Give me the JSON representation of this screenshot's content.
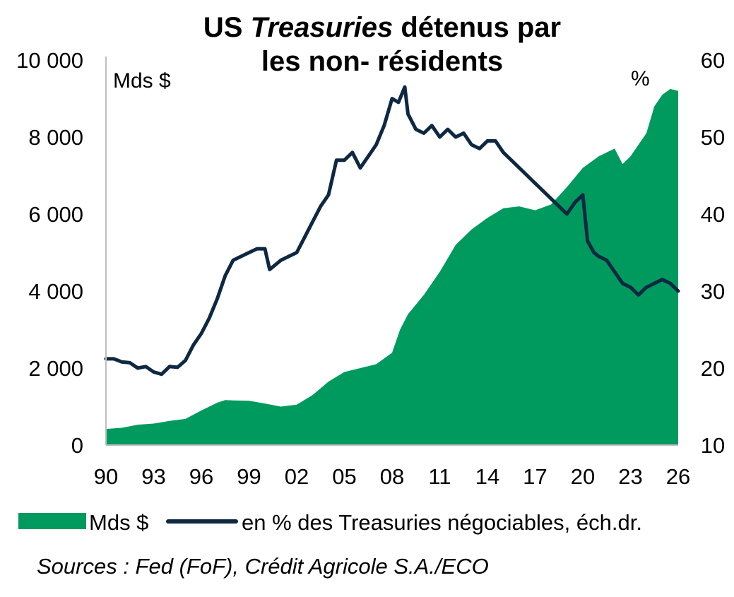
{
  "chart_data": {
    "type": "area+line",
    "title_prefix": "US ",
    "title_italic": "Treasuries",
    "title_suffix": " détenus par",
    "title_line2": "les non- résidents",
    "left_unit": "Mds $",
    "right_unit": "%",
    "x_ticks": [
      "90",
      "93",
      "96",
      "99",
      "02",
      "05",
      "08",
      "11",
      "14",
      "17",
      "20",
      "23",
      "26"
    ],
    "x_range": [
      1990,
      2026
    ],
    "left_ticks": [
      "0",
      "2 000",
      "4 000",
      "6 000",
      "8 000",
      "10 000"
    ],
    "left_ylim": [
      0,
      10000
    ],
    "right_ticks": [
      "10",
      "20",
      "30",
      "40",
      "50",
      "60"
    ],
    "right_ylim": [
      10,
      60
    ],
    "series": [
      {
        "name": "Mds $",
        "axis": "left",
        "kind": "area",
        "color": "#009A5E",
        "points": [
          [
            1990,
            420
          ],
          [
            1991,
            450
          ],
          [
            1992,
            530
          ],
          [
            1993,
            560
          ],
          [
            1994,
            630
          ],
          [
            1995,
            680
          ],
          [
            1996,
            900
          ],
          [
            1997,
            1100
          ],
          [
            1997.5,
            1170
          ],
          [
            1998,
            1160
          ],
          [
            1999,
            1150
          ],
          [
            2000,
            1080
          ],
          [
            2001,
            1000
          ],
          [
            2002,
            1050
          ],
          [
            2003,
            1300
          ],
          [
            2004,
            1650
          ],
          [
            2005,
            1900
          ],
          [
            2006,
            2000
          ],
          [
            2007,
            2100
          ],
          [
            2008,
            2400
          ],
          [
            2008.5,
            3000
          ],
          [
            2009,
            3400
          ],
          [
            2010,
            3900
          ],
          [
            2011,
            4500
          ],
          [
            2012,
            5200
          ],
          [
            2013,
            5600
          ],
          [
            2014,
            5900
          ],
          [
            2015,
            6150
          ],
          [
            2016,
            6200
          ],
          [
            2017,
            6100
          ],
          [
            2018,
            6250
          ],
          [
            2019,
            6700
          ],
          [
            2020,
            7200
          ],
          [
            2021,
            7500
          ],
          [
            2022,
            7700
          ],
          [
            2022.5,
            7300
          ],
          [
            2023,
            7500
          ],
          [
            2024,
            8100
          ],
          [
            2024.5,
            8800
          ],
          [
            2025,
            9100
          ],
          [
            2025.5,
            9250
          ],
          [
            2026,
            9200
          ]
        ]
      },
      {
        "name": "en % des Treasuries négociables, éch.dr.",
        "axis": "right",
        "kind": "line",
        "color": "#0E2841",
        "points": [
          [
            1990,
            21.2
          ],
          [
            1990.5,
            21.2
          ],
          [
            1991,
            20.8
          ],
          [
            1991.5,
            20.7
          ],
          [
            1992,
            20.0
          ],
          [
            1992.5,
            20.2
          ],
          [
            1993,
            19.5
          ],
          [
            1993.5,
            19.2
          ],
          [
            1994,
            20.2
          ],
          [
            1994.5,
            20.1
          ],
          [
            1995,
            21
          ],
          [
            1995.5,
            23
          ],
          [
            1996,
            24.5
          ],
          [
            1996.5,
            26.5
          ],
          [
            1997,
            29
          ],
          [
            1997.5,
            32
          ],
          [
            1998,
            34
          ],
          [
            1998.5,
            34.5
          ],
          [
            1999,
            35
          ],
          [
            1999.5,
            35.5
          ],
          [
            2000,
            35.5
          ],
          [
            2000.3,
            32.8
          ],
          [
            2001,
            34
          ],
          [
            2001.5,
            34.5
          ],
          [
            2002,
            35
          ],
          [
            2002.5,
            37
          ],
          [
            2003,
            39
          ],
          [
            2003.5,
            41
          ],
          [
            2004,
            42.5
          ],
          [
            2004.5,
            47
          ],
          [
            2005,
            47
          ],
          [
            2005.5,
            48
          ],
          [
            2006,
            46
          ],
          [
            2006.5,
            47.5
          ],
          [
            2007,
            49
          ],
          [
            2007.5,
            51.5
          ],
          [
            2008,
            55
          ],
          [
            2008.4,
            54.5
          ],
          [
            2008.8,
            56.5
          ],
          [
            2009,
            53
          ],
          [
            2009.5,
            51
          ],
          [
            2010,
            50.5
          ],
          [
            2010.5,
            51.5
          ],
          [
            2011,
            50
          ],
          [
            2011.5,
            51
          ],
          [
            2012,
            50
          ],
          [
            2012.5,
            50.5
          ],
          [
            2013,
            49
          ],
          [
            2013.5,
            48.5
          ],
          [
            2014,
            49.5
          ],
          [
            2014.5,
            49.5
          ],
          [
            2015,
            48
          ],
          [
            2015.5,
            47
          ],
          [
            2016,
            46
          ],
          [
            2016.5,
            45
          ],
          [
            2017,
            44
          ],
          [
            2017.5,
            43
          ],
          [
            2018,
            42
          ],
          [
            2018.5,
            41
          ],
          [
            2019,
            40
          ],
          [
            2019.5,
            41.5
          ],
          [
            2020,
            42.5
          ],
          [
            2020.3,
            36.5
          ],
          [
            2020.7,
            35
          ],
          [
            2021,
            34.5
          ],
          [
            2021.5,
            34
          ],
          [
            2022,
            32.5
          ],
          [
            2022.5,
            31
          ],
          [
            2023,
            30.5
          ],
          [
            2023.5,
            29.5
          ],
          [
            2024,
            30.5
          ],
          [
            2024.5,
            31
          ],
          [
            2025,
            31.5
          ],
          [
            2025.5,
            31
          ],
          [
            2026,
            30
          ]
        ]
      }
    ],
    "legend": [
      {
        "label": "Mds $",
        "kind": "area",
        "color": "#009A5E"
      },
      {
        "label": "en % des Treasuries négociables, éch.dr.",
        "kind": "line",
        "color": "#0E2841"
      }
    ],
    "legend_position": "bottom",
    "grid": false
  },
  "source": "Sources : Fed (FoF), Crédit Agricole S.A./ECO"
}
